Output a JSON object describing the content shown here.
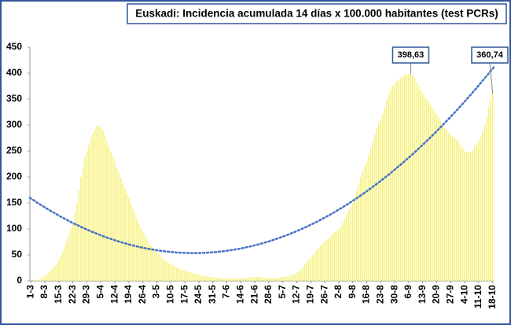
{
  "chart_data": {
    "type": "bar",
    "title": "Euskadi: Incidencia acumulada 14 días x 100.000 habitantes (test PCRs)",
    "color": "#f7f27e",
    "categories": [
      "1-3",
      null,
      null,
      null,
      null,
      null,
      null,
      "8-3",
      null,
      null,
      null,
      null,
      null,
      null,
      "15-3",
      null,
      null,
      null,
      null,
      null,
      null,
      "22-3",
      null,
      null,
      null,
      null,
      null,
      null,
      "29-3",
      null,
      null,
      null,
      null,
      null,
      null,
      "5-4",
      null,
      null,
      null,
      null,
      null,
      null,
      "12-4",
      null,
      null,
      null,
      null,
      null,
      null,
      "19-4",
      null,
      null,
      null,
      null,
      null,
      null,
      "26-4",
      null,
      null,
      null,
      null,
      null,
      null,
      "3-5",
      null,
      null,
      null,
      null,
      null,
      null,
      "10-5",
      null,
      null,
      null,
      null,
      null,
      null,
      "17-5",
      null,
      null,
      null,
      null,
      null,
      null,
      "24-5",
      null,
      null,
      null,
      null,
      null,
      null,
      "31-5",
      null,
      null,
      null,
      null,
      null,
      null,
      "7-6",
      null,
      null,
      null,
      null,
      null,
      null,
      "14-6",
      null,
      null,
      null,
      null,
      null,
      null,
      "21-6",
      null,
      null,
      null,
      null,
      null,
      null,
      "28-6",
      null,
      null,
      null,
      null,
      null,
      null,
      "5-7",
      null,
      null,
      null,
      null,
      null,
      null,
      "12-7",
      null,
      null,
      null,
      null,
      null,
      null,
      "19-7",
      null,
      null,
      null,
      null,
      null,
      null,
      "26-7",
      null,
      null,
      null,
      null,
      null,
      null,
      "2-8",
      null,
      null,
      null,
      null,
      null,
      null,
      "9-8",
      null,
      null,
      null,
      null,
      null,
      null,
      "16-8",
      null,
      null,
      null,
      null,
      null,
      null,
      "23-8",
      null,
      null,
      null,
      null,
      null,
      null,
      "30-8",
      null,
      null,
      null,
      null,
      null,
      null,
      "6-9",
      null,
      null,
      null,
      null,
      null,
      null,
      "13-9",
      null,
      null,
      null,
      null,
      null,
      null,
      "20-9",
      null,
      null,
      null,
      null,
      null,
      null,
      "27-9",
      null,
      null,
      null,
      null,
      null,
      null,
      "4-10",
      null,
      null,
      null,
      null,
      null,
      null,
      "11-10",
      null,
      null,
      null,
      null,
      null,
      null,
      "18-10"
    ],
    "values": [
      0,
      0,
      1,
      2,
      3,
      5,
      7,
      10,
      13,
      16,
      20,
      24,
      29,
      34,
      40,
      48,
      57,
      67,
      78,
      90,
      100,
      110,
      130,
      150,
      175,
      200,
      220,
      238,
      250,
      262,
      275,
      285,
      292,
      298,
      300,
      295,
      290,
      280,
      268,
      258,
      248,
      238,
      230,
      218,
      208,
      198,
      188,
      178,
      168,
      160,
      150,
      140,
      130,
      120,
      110,
      102,
      95,
      88,
      81,
      75,
      69,
      64,
      59,
      55,
      51,
      47,
      43,
      40,
      37,
      34,
      32,
      30,
      28,
      26,
      24,
      22,
      21,
      20,
      18,
      17,
      16,
      15,
      14,
      13,
      12,
      11,
      10,
      9,
      9,
      8,
      8,
      7,
      7,
      6,
      6,
      6,
      5,
      5,
      5,
      5,
      5,
      4,
      4,
      5,
      5,
      5,
      5,
      6,
      6,
      7,
      7,
      7,
      7,
      8,
      8,
      7,
      7,
      6,
      6,
      6,
      6,
      5,
      5,
      6,
      6,
      7,
      7,
      8,
      9,
      10,
      11,
      12,
      13,
      15,
      18,
      22,
      27,
      32,
      37,
      41,
      45,
      50,
      55,
      60,
      64,
      68,
      72,
      75,
      79,
      83,
      87,
      91,
      94,
      97,
      100,
      105,
      112,
      120,
      128,
      136,
      143,
      150,
      162,
      175,
      188,
      200,
      212,
      222,
      230,
      242,
      255,
      268,
      282,
      295,
      303,
      310,
      322,
      335,
      348,
      360,
      370,
      376,
      380,
      385,
      388,
      391,
      394,
      396,
      397,
      398,
      398.63,
      396,
      390,
      382,
      374,
      367,
      360,
      355,
      350,
      345,
      338,
      332,
      326,
      320,
      314,
      308,
      302,
      296,
      290,
      285,
      280,
      278,
      276,
      272,
      266,
      260,
      255,
      250,
      248,
      247,
      248,
      252,
      258,
      264,
      270,
      278,
      288,
      300,
      315,
      335,
      350,
      360.74
    ],
    "value_labels": [
      null,
      null,
      null,
      null,
      null,
      null,
      null,
      null,
      null,
      null,
      null,
      null,
      null,
      null,
      null,
      null,
      null,
      null,
      null,
      null,
      null,
      null,
      null,
      null,
      null,
      null,
      null,
      null,
      null,
      null,
      null,
      null,
      null,
      null,
      null,
      null,
      null,
      null,
      null,
      null,
      null,
      null,
      null,
      null,
      null,
      null,
      null,
      null,
      null,
      null,
      null,
      null,
      null,
      null,
      null,
      null,
      null,
      null,
      null,
      null,
      null,
      null,
      null,
      null,
      null,
      null,
      null,
      null,
      null,
      null,
      null,
      null,
      null,
      null,
      null,
      null,
      null,
      null,
      null,
      null,
      null,
      null,
      null,
      null,
      null,
      null,
      null,
      null,
      null,
      null,
      null,
      null,
      null,
      null,
      null,
      null,
      null,
      null,
      null,
      null,
      null,
      null,
      null,
      null,
      null,
      null,
      null,
      null,
      null,
      null,
      null,
      null,
      null,
      null,
      null,
      null,
      null,
      null,
      null,
      null,
      null,
      null,
      null,
      null,
      null,
      null,
      null,
      null,
      null,
      null,
      null,
      null,
      null,
      null,
      null,
      null,
      null,
      null,
      null,
      null,
      null,
      null,
      null,
      null,
      null,
      null,
      null,
      null,
      null,
      null,
      null,
      null,
      null,
      null,
      null,
      null,
      null,
      null,
      null,
      null,
      null,
      null,
      null,
      null,
      null,
      null,
      null,
      null,
      null,
      null,
      null,
      null,
      null,
      null,
      null,
      null,
      null,
      null,
      null,
      null,
      null,
      null,
      null,
      null,
      null,
      null,
      null,
      null,
      null,
      null,
      "398,63",
      null,
      null,
      null,
      null,
      null,
      null,
      null,
      null,
      null,
      null,
      null,
      null,
      null,
      null,
      null,
      null,
      null,
      null,
      null,
      null,
      null,
      null,
      null,
      null,
      null,
      null,
      null,
      null,
      null,
      null,
      null,
      null,
      null,
      null,
      null,
      null,
      null,
      null,
      null,
      null,
      "360,74"
    ],
    "trendline": {
      "type": "polynomial",
      "order": 2,
      "color": "#4472c4",
      "style": "dotted"
    },
    "ylim": [
      0,
      450
    ],
    "yticks": [
      0,
      50,
      100,
      150,
      200,
      250,
      300,
      350,
      400,
      450
    ],
    "grid": false
  }
}
